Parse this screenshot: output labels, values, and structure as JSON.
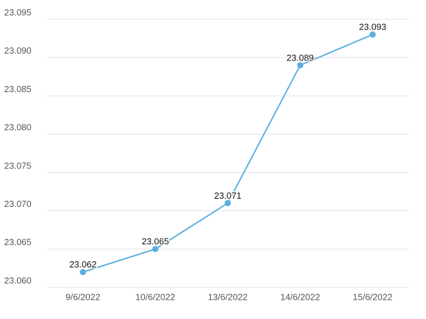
{
  "chart_data": {
    "type": "line",
    "categories": [
      "9/6/2022",
      "10/6/2022",
      "13/6/2022",
      "14/6/2022",
      "15/6/2022"
    ],
    "values": [
      23.062,
      23.065,
      23.071,
      23.089,
      23.093
    ],
    "color": "#5aaee0",
    "ylim": [
      23.06,
      23.095
    ],
    "yticks": [
      {
        "value": 23.06,
        "label": "23.060"
      },
      {
        "value": 23.065,
        "label": "23.065"
      },
      {
        "value": 23.07,
        "label": "23.070"
      },
      {
        "value": 23.075,
        "label": "23.075"
      },
      {
        "value": 23.08,
        "label": "23.080"
      },
      {
        "value": 23.085,
        "label": "23.085"
      },
      {
        "value": 23.09,
        "label": "23.090"
      },
      {
        "value": 23.095,
        "label": "23.095"
      }
    ],
    "grid": true
  }
}
